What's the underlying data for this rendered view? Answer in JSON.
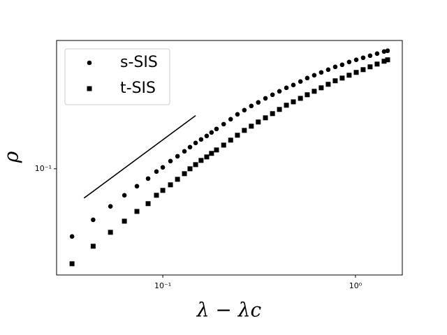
{
  "chart_data": {
    "type": "scatter",
    "xlabel": "λ − λc",
    "ylabel": "ρ",
    "log_x": true,
    "log_y": true,
    "legend": "upper left",
    "x": [
      0.0338,
      0.0435,
      0.0535,
      0.0632,
      0.0734,
      0.0839,
      0.0927,
      0.1,
      0.1096,
      0.1192,
      0.1295,
      0.1384,
      0.148,
      0.158,
      0.169,
      0.179,
      0.19,
      0.207,
      0.225,
      0.244,
      0.265,
      0.288,
      0.313,
      0.341,
      0.371,
      0.403,
      0.438,
      0.476,
      0.518,
      0.562,
      0.611,
      0.664,
      0.722,
      0.785,
      0.853,
      0.927,
      1.009,
      1.096,
      1.191,
      1.295,
      1.408,
      1.468
    ],
    "series": [
      {
        "name": "s-SIS",
        "color": "#000000",
        "marker": "circle",
        "values": [
          0.0537,
          0.0626,
          0.0708,
          0.0784,
          0.0852,
          0.0914,
          0.0975,
          0.1013,
          0.1073,
          0.1122,
          0.1174,
          0.122,
          0.1268,
          0.1309,
          0.1352,
          0.1396,
          0.1442,
          0.1507,
          0.1577,
          0.1649,
          0.1714,
          0.1781,
          0.184,
          0.191,
          0.1974,
          0.2038,
          0.2104,
          0.2159,
          0.2229,
          0.2301,
          0.2362,
          0.2424,
          0.2486,
          0.2551,
          0.26,
          0.2668,
          0.2721,
          0.2773,
          0.2826,
          0.2881,
          0.2937,
          0.2957
        ]
      },
      {
        "name": "t-SIS",
        "color": "#000000",
        "marker": "square",
        "values": [
          0.0418,
          0.0491,
          0.0558,
          0.0618,
          0.0676,
          0.0726,
          0.0784,
          0.082,
          0.0863,
          0.0908,
          0.0956,
          0.1,
          0.1039,
          0.108,
          0.1115,
          0.1152,
          0.1189,
          0.1243,
          0.1301,
          0.1361,
          0.1423,
          0.1479,
          0.1537,
          0.1597,
          0.166,
          0.1725,
          0.1793,
          0.185,
          0.191,
          0.1974,
          0.2038,
          0.2104,
          0.2173,
          0.2244,
          0.2301,
          0.2362,
          0.2424,
          0.2486,
          0.2551,
          0.2617,
          0.2686,
          0.2721
        ]
      }
    ],
    "reference_line": {
      "color": "#000000",
      "x": [
        0.039,
        0.148
      ],
      "y": [
        0.0764,
        0.163
      ]
    },
    "xlim": [
      0.0281,
      1.75
    ],
    "ylim": [
      0.0377,
      0.325
    ],
    "xticks": [
      {
        "value": 0.1,
        "label": "10⁻¹"
      },
      {
        "value": 1,
        "label": "10⁰"
      }
    ],
    "yticks": [
      {
        "value": 0.1,
        "label": "10⁻¹"
      }
    ]
  }
}
